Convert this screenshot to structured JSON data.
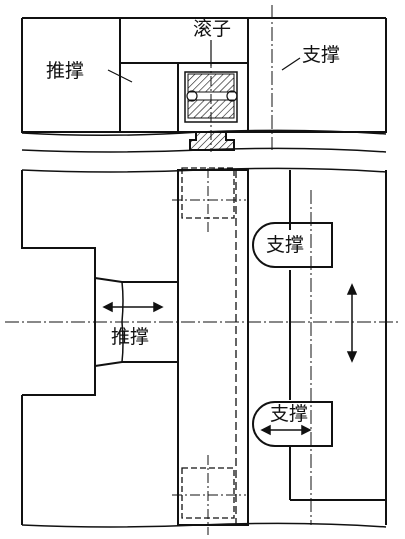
{
  "labels": {
    "roller": "滚子",
    "push_brace_top": "推撑",
    "support_top": "支撑",
    "support_middle": "支撑",
    "push_brace_bottom": "推撑",
    "support_bottom": "支撑"
  },
  "colors": {
    "line": "#111111",
    "background": "#ffffff",
    "hatch": "#111111"
  }
}
